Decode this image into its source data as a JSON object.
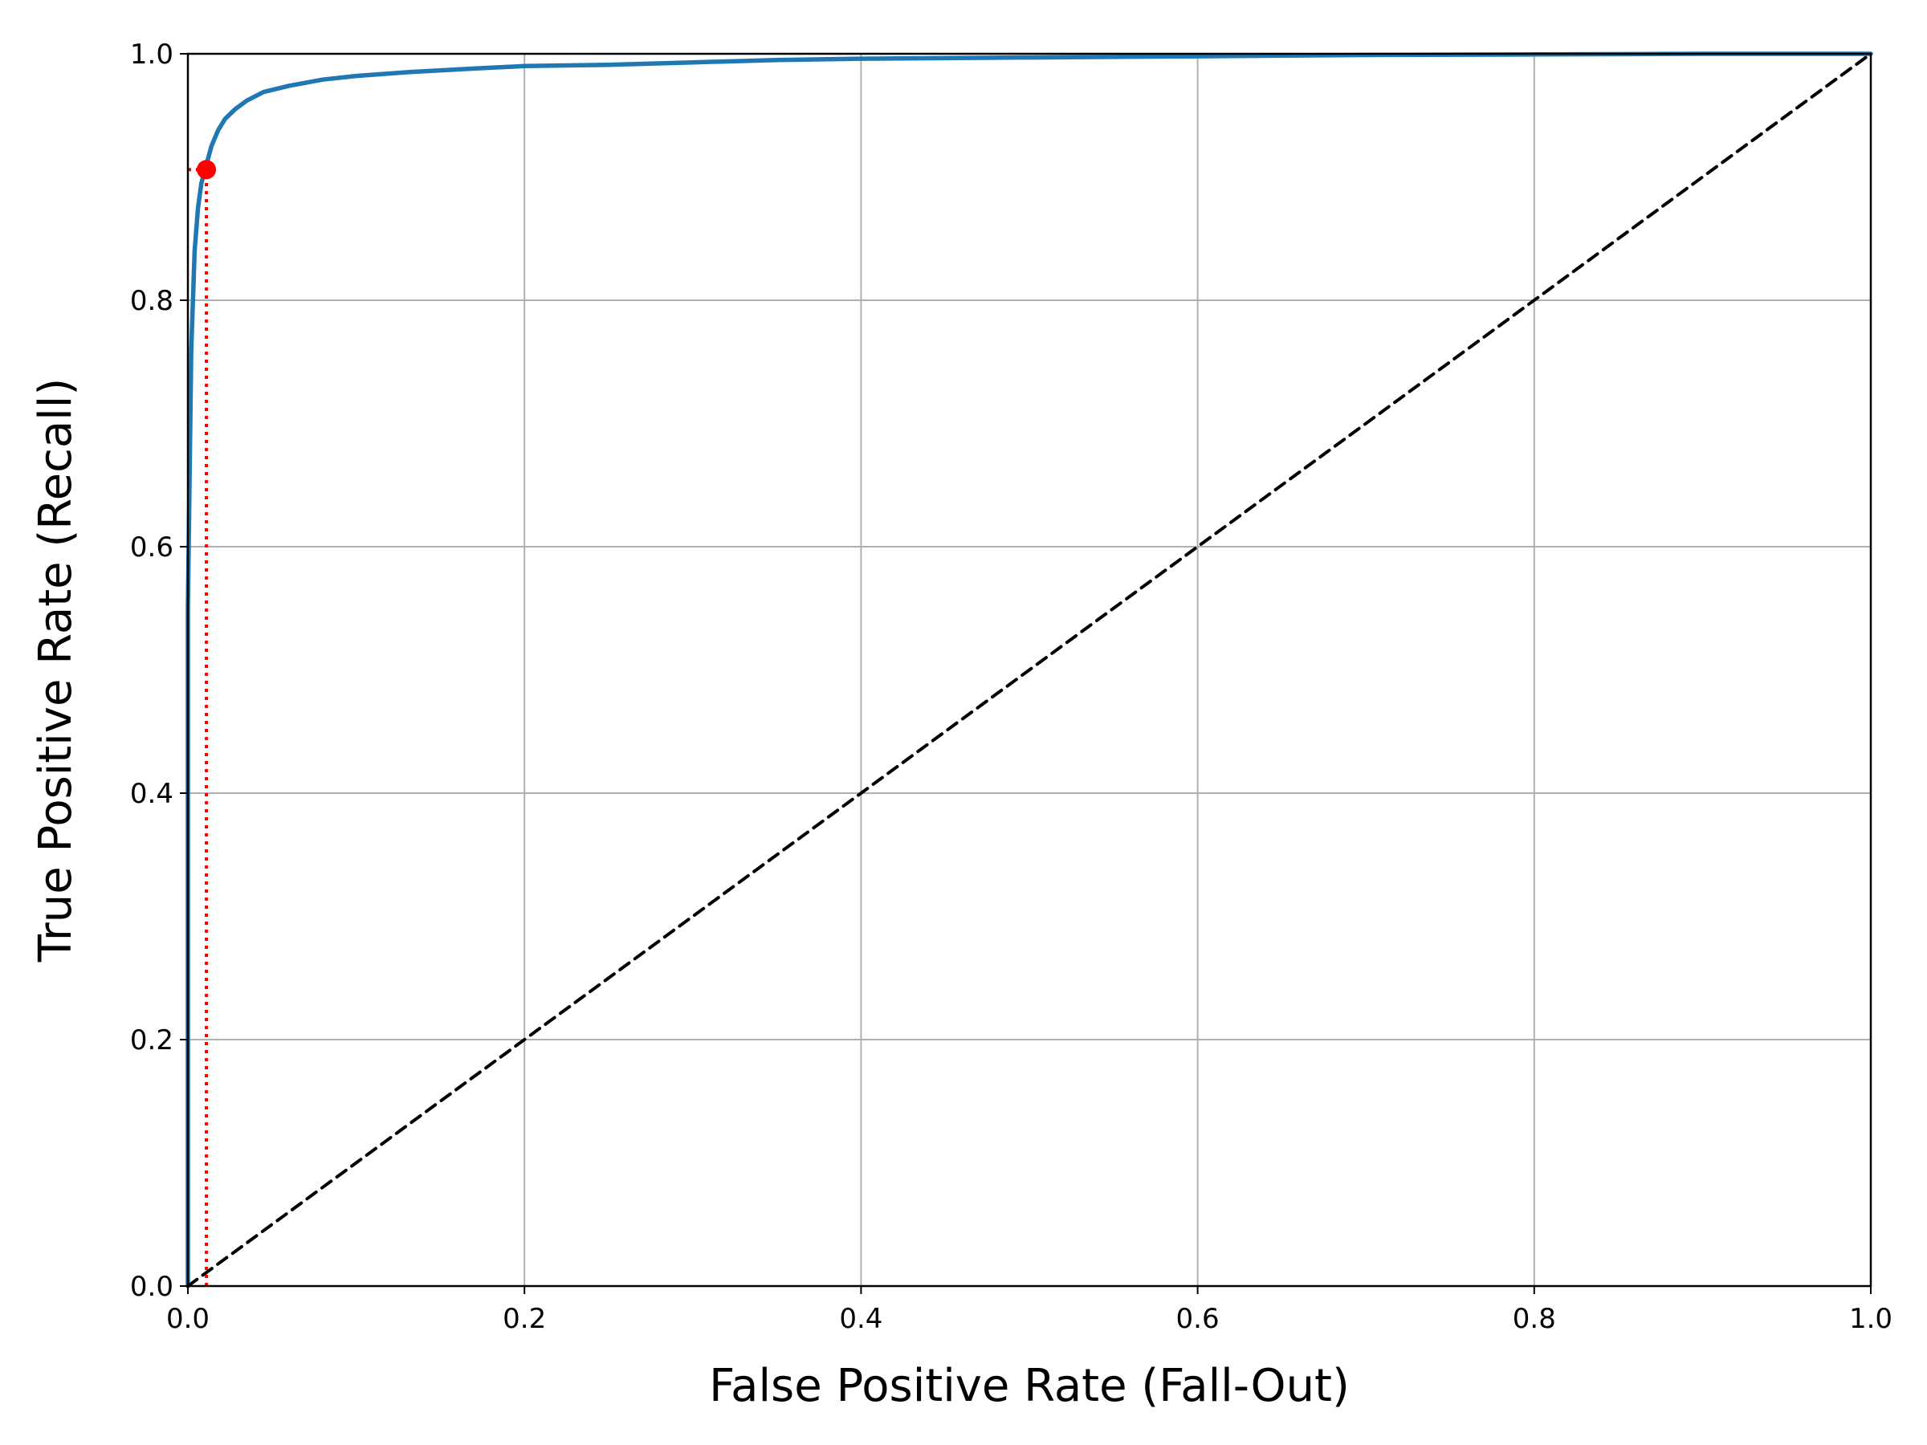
{
  "chart_data": {
    "type": "line",
    "title": "",
    "xlabel": "False Positive Rate (Fall-Out)",
    "ylabel": "True Positive Rate (Recall)",
    "xlim": [
      0.0,
      1.0
    ],
    "ylim": [
      0.0,
      1.0
    ],
    "grid": true,
    "legend": "none",
    "x_ticks": [
      "0.0",
      "0.2",
      "0.4",
      "0.6",
      "0.8",
      "1.0"
    ],
    "y_ticks": [
      "0.0",
      "0.2",
      "0.4",
      "0.6",
      "0.8",
      "1.0"
    ],
    "series": [
      {
        "style": "solid",
        "color": "#1f77b4",
        "x": [
          0.0,
          0.0,
          0.002,
          0.004,
          0.006,
          0.008,
          0.011,
          0.014,
          0.018,
          0.022,
          0.028,
          0.035,
          0.045,
          0.06,
          0.08,
          0.1,
          0.13,
          0.17,
          0.2,
          0.25,
          0.3,
          0.35,
          0.4,
          0.5,
          0.6,
          0.7,
          0.8,
          0.9,
          1.0
        ],
        "y": [
          0.0,
          0.55,
          0.76,
          0.84,
          0.875,
          0.895,
          0.91,
          0.925,
          0.938,
          0.947,
          0.955,
          0.962,
          0.969,
          0.974,
          0.979,
          0.982,
          0.985,
          0.988,
          0.99,
          0.991,
          0.993,
          0.995,
          0.996,
          0.997,
          0.998,
          0.999,
          0.9995,
          1.0,
          1.0
        ]
      },
      {
        "style": "dashed",
        "color": "#000000",
        "x": [
          0.0,
          1.0
        ],
        "y": [
          0.0,
          1.0
        ]
      }
    ],
    "highlight": {
      "x": 0.011,
      "y": 0.906,
      "color": "#ff0000",
      "guide_style": "dotted"
    }
  }
}
